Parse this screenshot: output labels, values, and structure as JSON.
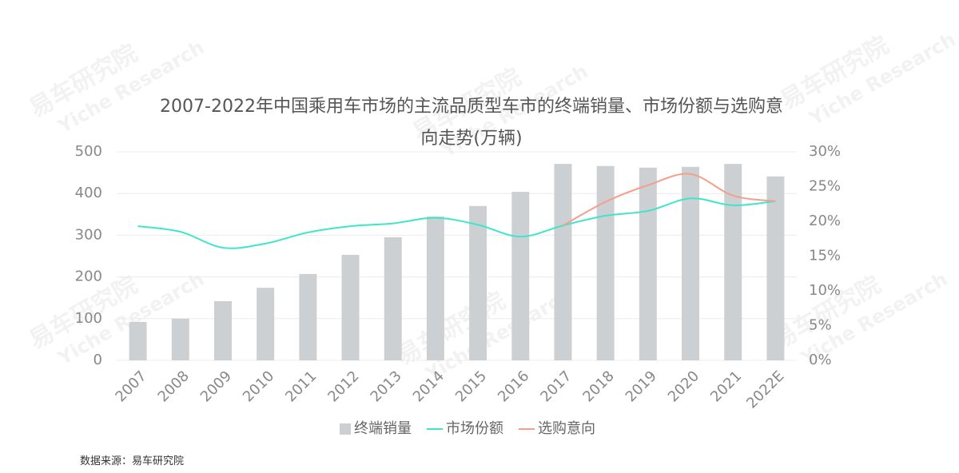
{
  "chart_data": {
    "type": "bar-line",
    "title": "2007-2022年中国乘用车市场的主流品质型车市的终端销量、市场份额与选购意向走势(万辆)",
    "source": "数据来源：易车研究院",
    "watermark": {
      "cn": "易车研究院",
      "en": "Yiche Research"
    },
    "categories": [
      "2007",
      "2008",
      "2009",
      "2010",
      "2011",
      "2012",
      "2013",
      "2014",
      "2015",
      "2016",
      "2017",
      "2018",
      "2019",
      "2020",
      "2021",
      "2022E"
    ],
    "series": [
      {
        "name": "终端销量",
        "color": "#cdd0d3",
        "kind": "bar",
        "values": [
          92,
          100,
          142,
          174,
          207,
          253,
          295,
          345,
          370,
          404,
          471,
          466,
          462,
          464,
          471,
          441
        ]
      },
      {
        "name": "市场份额",
        "color": "#3ee6c9",
        "kind": "line",
        "axis": "y2",
        "values": [
          19.3,
          18.5,
          16.2,
          16.8,
          18.4,
          19.3,
          19.7,
          20.5,
          19.5,
          17.8,
          19.4,
          20.8,
          21.5,
          23.3,
          22.3,
          22.9
        ]
      },
      {
        "name": "选购意向",
        "color": "#f2a08b",
        "kind": "line",
        "axis": "y2",
        "values": [
          null,
          null,
          null,
          null,
          null,
          null,
          null,
          null,
          null,
          null,
          19.4,
          22.8,
          25.2,
          26.8,
          23.7,
          22.9
        ]
      }
    ],
    "ylim": [
      0,
      500
    ],
    "yticks": [
      0,
      100,
      200,
      300,
      400,
      500
    ],
    "y2lim": [
      0,
      30
    ],
    "y2ticks": [
      {
        "value": 0,
        "label": "0%"
      },
      {
        "value": 5,
        "label": "5%"
      },
      {
        "value": 10,
        "label": "10%"
      },
      {
        "value": 15,
        "label": "15%"
      },
      {
        "value": 20,
        "label": "20%"
      },
      {
        "value": 25,
        "label": "25%"
      },
      {
        "value": 30,
        "label": "30%"
      }
    ],
    "grid": true
  }
}
